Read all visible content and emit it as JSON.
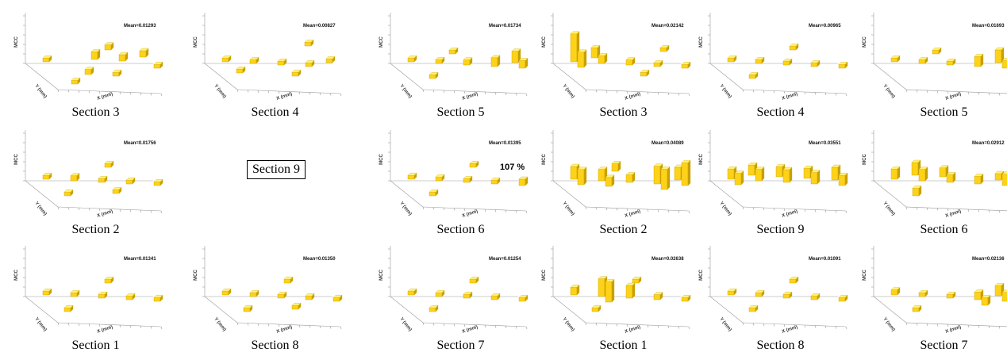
{
  "colors": {
    "bar_fill": "#ffd21a",
    "bar_dark": "#c8a000",
    "bar_top": "#fff27a",
    "axis": "#9a9a9a"
  },
  "labels": {
    "z_axis": "MCC",
    "y_axis": "Y (mm)",
    "x_axis": "X (mm)"
  },
  "boxed_label": "Section 9",
  "annotation": "107 %",
  "chart_data": [
    {
      "type": "bar3d",
      "caption": "Section 3",
      "mean": "Mean=0.01293",
      "bars": [
        [
          0,
          0,
          3
        ],
        [
          2,
          1,
          6
        ],
        [
          4,
          2,
          5
        ],
        [
          1,
          3,
          4
        ],
        [
          3,
          0,
          4
        ],
        [
          2,
          4,
          3
        ],
        [
          0,
          4,
          3
        ],
        [
          4,
          4,
          3
        ],
        [
          3,
          2,
          5
        ]
      ]
    },
    {
      "type": "bar3d",
      "caption": "Section 4",
      "mean": "Mean=0.00827",
      "bars": [
        [
          0,
          0,
          3
        ],
        [
          1,
          1,
          3
        ],
        [
          2,
          2,
          3
        ],
        [
          3,
          3,
          3
        ],
        [
          4,
          0,
          3
        ],
        [
          0,
          2,
          3
        ],
        [
          2,
          4,
          3
        ],
        [
          4,
          3,
          3
        ]
      ]
    },
    {
      "type": "bar3d",
      "caption": "Section 5",
      "mean": "Mean=0.01734",
      "bars": [
        [
          0,
          0,
          3
        ],
        [
          1,
          1,
          3
        ],
        [
          2,
          2,
          4
        ],
        [
          3,
          3,
          7
        ],
        [
          4,
          3,
          9
        ],
        [
          4,
          4,
          6
        ],
        [
          2,
          0,
          3
        ],
        [
          0,
          3,
          3
        ]
      ]
    },
    {
      "type": "bar3d",
      "caption": "Section 3",
      "mean": "Mean=0.02142",
      "bars": [
        [
          0,
          0,
          22
        ],
        [
          0,
          1,
          12
        ],
        [
          1,
          0,
          8
        ],
        [
          1,
          1,
          6
        ],
        [
          2,
          2,
          4
        ],
        [
          3,
          3,
          3
        ],
        [
          4,
          1,
          3
        ],
        [
          2,
          4,
          3
        ],
        [
          4,
          4,
          3
        ]
      ]
    },
    {
      "type": "bar3d",
      "caption": "Section 4",
      "mean": "Mean=0.00965",
      "bars": [
        [
          0,
          0,
          3
        ],
        [
          1,
          1,
          3
        ],
        [
          2,
          2,
          3
        ],
        [
          3,
          3,
          3
        ],
        [
          4,
          4,
          3
        ],
        [
          0,
          3,
          3
        ],
        [
          3,
          0,
          3
        ]
      ]
    },
    {
      "type": "bar3d",
      "caption": "Section 5",
      "mean": "Mean=0.01693",
      "bars": [
        [
          0,
          0,
          3
        ],
        [
          1,
          1,
          3
        ],
        [
          2,
          2,
          3
        ],
        [
          3,
          3,
          8
        ],
        [
          4,
          3,
          10
        ],
        [
          4,
          4,
          6
        ],
        [
          2,
          0,
          3
        ]
      ]
    },
    {
      "type": "bar3d",
      "caption": "Section 2",
      "mean": "Mean=0.01756",
      "bars": [
        [
          0,
          0,
          3
        ],
        [
          1,
          1,
          4
        ],
        [
          2,
          2,
          3
        ],
        [
          3,
          3,
          3
        ],
        [
          4,
          4,
          3
        ],
        [
          0,
          3,
          3
        ],
        [
          3,
          0,
          3
        ],
        [
          2,
          4,
          3
        ]
      ]
    },
    {
      "type": "bar3d",
      "caption": "Section 6",
      "mean": "Mean=0.01395",
      "bars": [
        [
          0,
          0,
          3
        ],
        [
          1,
          1,
          3
        ],
        [
          2,
          2,
          3
        ],
        [
          3,
          3,
          3
        ],
        [
          4,
          4,
          5
        ],
        [
          0,
          3,
          3
        ],
        [
          3,
          0,
          3
        ]
      ]
    },
    {
      "type": "bar3d",
      "caption": "Section 2",
      "mean": "Mean=0.04089",
      "bars": [
        [
          0,
          0,
          10
        ],
        [
          0,
          1,
          12
        ],
        [
          1,
          1,
          9
        ],
        [
          1,
          2,
          7
        ],
        [
          2,
          2,
          6
        ],
        [
          3,
          3,
          14
        ],
        [
          3,
          4,
          16
        ],
        [
          4,
          3,
          10
        ],
        [
          4,
          4,
          18
        ],
        [
          2,
          0,
          6
        ]
      ]
    },
    {
      "type": "bar3d",
      "caption": "Section 9",
      "mean": "Mean=0.03551",
      "bars": [
        [
          0,
          0,
          8
        ],
        [
          0,
          1,
          9
        ],
        [
          1,
          0,
          8
        ],
        [
          1,
          1,
          9
        ],
        [
          2,
          1,
          8
        ],
        [
          2,
          2,
          10
        ],
        [
          3,
          2,
          8
        ],
        [
          3,
          3,
          9
        ],
        [
          4,
          3,
          10
        ],
        [
          4,
          4,
          8
        ]
      ]
    },
    {
      "type": "bar3d",
      "caption": "Section 6",
      "mean": "Mean=0.02912",
      "bars": [
        [
          0,
          0,
          8
        ],
        [
          1,
          0,
          10
        ],
        [
          1,
          1,
          9
        ],
        [
          2,
          1,
          7
        ],
        [
          2,
          2,
          6
        ],
        [
          3,
          3,
          6
        ],
        [
          4,
          3,
          5
        ],
        [
          4,
          4,
          9
        ],
        [
          0,
          3,
          6
        ]
      ]
    },
    {
      "type": "bar3d",
      "caption": "Section 1",
      "mean": "Mean=0.01341",
      "bars": [
        [
          0,
          0,
          3
        ],
        [
          1,
          1,
          3
        ],
        [
          2,
          2,
          3
        ],
        [
          3,
          3,
          3
        ],
        [
          4,
          4,
          3
        ],
        [
          0,
          3,
          3
        ],
        [
          3,
          0,
          3
        ]
      ]
    },
    {
      "type": "bar3d",
      "caption": "Section 8",
      "mean": "Mean=0.01350",
      "bars": [
        [
          0,
          0,
          3
        ],
        [
          1,
          1,
          3
        ],
        [
          2,
          2,
          3
        ],
        [
          3,
          3,
          3
        ],
        [
          4,
          4,
          3
        ],
        [
          0,
          3,
          3
        ],
        [
          3,
          0,
          3
        ],
        [
          2,
          4,
          3
        ]
      ]
    },
    {
      "type": "bar3d",
      "caption": "Section 7",
      "mean": "Mean=0.01254",
      "bars": [
        [
          0,
          0,
          3
        ],
        [
          1,
          1,
          3
        ],
        [
          2,
          2,
          3
        ],
        [
          3,
          3,
          3
        ],
        [
          4,
          4,
          3
        ],
        [
          0,
          3,
          3
        ],
        [
          3,
          0,
          3
        ]
      ]
    },
    {
      "type": "bar3d",
      "caption": "Section 1",
      "mean": "Mean=0.02638",
      "bars": [
        [
          0,
          0,
          6
        ],
        [
          1,
          1,
          14
        ],
        [
          1,
          2,
          16
        ],
        [
          2,
          2,
          10
        ],
        [
          3,
          3,
          4
        ],
        [
          4,
          4,
          3
        ],
        [
          0,
          3,
          3
        ],
        [
          3,
          0,
          3
        ]
      ]
    },
    {
      "type": "bar3d",
      "caption": "Section 8",
      "mean": "Mean=0.01091",
      "bars": [
        [
          0,
          0,
          3
        ],
        [
          1,
          1,
          3
        ],
        [
          2,
          2,
          3
        ],
        [
          3,
          3,
          3
        ],
        [
          4,
          4,
          3
        ],
        [
          0,
          3,
          3
        ],
        [
          3,
          0,
          3
        ]
      ]
    },
    {
      "type": "bar3d",
      "caption": "Section 7",
      "mean": "Mean=0.02136",
      "bars": [
        [
          0,
          0,
          4
        ],
        [
          1,
          1,
          3
        ],
        [
          2,
          2,
          3
        ],
        [
          3,
          3,
          6
        ],
        [
          4,
          3,
          8
        ],
        [
          4,
          4,
          7
        ],
        [
          3,
          4,
          6
        ],
        [
          0,
          3,
          3
        ]
      ]
    }
  ]
}
